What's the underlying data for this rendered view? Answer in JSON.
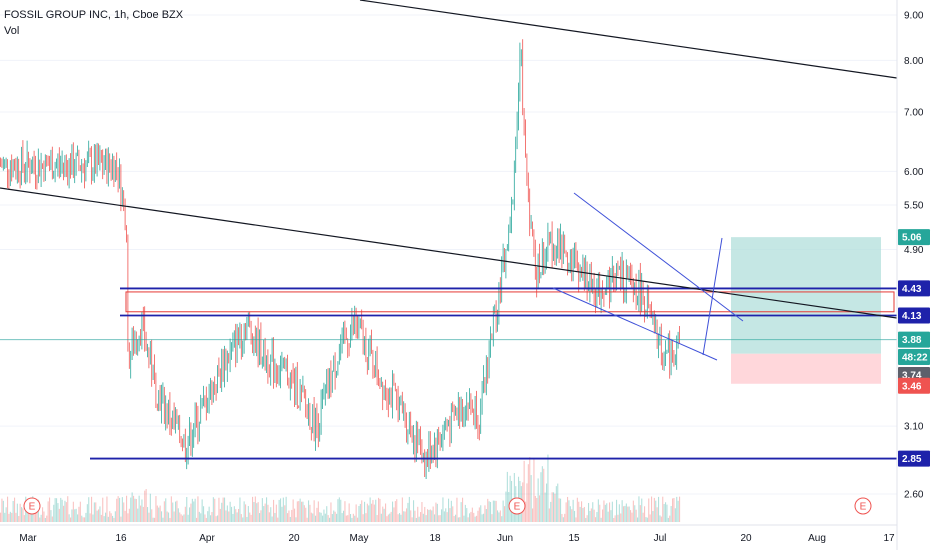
{
  "header": {
    "symbol_line": "FOSSIL GROUP INC, 1h, Cboe BZX",
    "indicator": "Vol"
  },
  "colors": {
    "up": "#26a69a",
    "down": "#ef5350",
    "trendline": "#131722",
    "level_line": "#1e22aa",
    "channel": "#3f51d8",
    "box": "#e53935",
    "target_zone": "#b2dfdb",
    "stop_zone": "#ffcdd2",
    "axis_bg": "#ffffff"
  },
  "chart_data": {
    "type": "candlestick",
    "title": "FOSSIL GROUP INC, 1h, Cboe BZX",
    "y_axis": {
      "scale": "log",
      "tick_labels": [
        "9.00",
        "8.00",
        "7.00",
        "6.00",
        "5.50",
        "4.90",
        "3.88",
        "3.10",
        "2.60"
      ]
    },
    "x_axis": {
      "tick_labels": [
        "Mar",
        "16",
        "Apr",
        "20",
        "May",
        "18",
        "Jun",
        "15",
        "Jul",
        "20",
        "Aug",
        "17"
      ]
    },
    "price_badges": [
      {
        "label": "5.06",
        "color": "#26a69a"
      },
      {
        "label": "4.43",
        "color": "#1e22aa"
      },
      {
        "label": "4.13",
        "color": "#1e22aa"
      },
      {
        "label": "3.88",
        "color": "#26a69a"
      },
      {
        "label": "48:22",
        "color": "#26a69a"
      },
      {
        "label": "3.74",
        "color": "#5d606b"
      },
      {
        "label": "3.46",
        "color": "#ef5350"
      },
      {
        "label": "2.85",
        "color": "#1e22aa"
      }
    ],
    "horizontal_levels": [
      4.43,
      4.13,
      2.85
    ],
    "last_price": 3.88,
    "position": {
      "target": 5.06,
      "entry": 3.74,
      "stop": 3.46
    },
    "earnings_markers": [
      "E",
      "E",
      "E"
    ],
    "series_path": [
      {
        "date": "Feb 25",
        "value": 6.1
      },
      {
        "date": "Feb 27",
        "value": 5.2
      },
      {
        "date": "Mar 2",
        "value": 4.1
      },
      {
        "date": "Mar 5",
        "value": 4.5
      },
      {
        "date": "Mar 9",
        "value": 4.6
      },
      {
        "date": "Mar 13",
        "value": 3.9
      },
      {
        "date": "Mar 16",
        "value": 4.4
      },
      {
        "date": "Mar 18",
        "value": 3.0
      },
      {
        "date": "Mar 20",
        "value": 3.5
      },
      {
        "date": "Mar 24",
        "value": 4.05
      },
      {
        "date": "Mar 27",
        "value": 3.4
      },
      {
        "date": "Apr 1",
        "value": 2.95
      },
      {
        "date": "Apr 7",
        "value": 3.5
      },
      {
        "date": "Apr 13",
        "value": 4.05
      },
      {
        "date": "Apr 17",
        "value": 3.7
      },
      {
        "date": "Apr 22",
        "value": 3.5
      },
      {
        "date": "Apr 27",
        "value": 3.1
      },
      {
        "date": "May 2",
        "value": 3.8
      },
      {
        "date": "May 5",
        "value": 4.05
      },
      {
        "date": "May 10",
        "value": 3.5
      },
      {
        "date": "May 14",
        "value": 3.25
      },
      {
        "date": "May 19",
        "value": 2.85
      },
      {
        "date": "May 23",
        "value": 3.1
      },
      {
        "date": "May 27",
        "value": 3.3
      },
      {
        "date": "Jun 1",
        "value": 3.2
      },
      {
        "date": "Jun 3",
        "value": 3.9
      },
      {
        "date": "Jun 5",
        "value": 4.5
      },
      {
        "date": "Jun 7",
        "value": 5.2
      },
      {
        "date": "Jun 9",
        "value": 8.2
      },
      {
        "date": "Jun 10",
        "value": 6.0
      },
      {
        "date": "Jun 12",
        "value": 4.6
      },
      {
        "date": "Jun 15",
        "value": 5.0
      },
      {
        "date": "Jun 19",
        "value": 4.8
      },
      {
        "date": "Jun 24",
        "value": 4.4
      },
      {
        "date": "Jun 28",
        "value": 4.6
      },
      {
        "date": "Jul 1",
        "value": 4.4
      },
      {
        "date": "Jul 5",
        "value": 3.8
      },
      {
        "date": "Jul 7",
        "value": 3.7
      },
      {
        "date": "Jul 9",
        "value": 3.88
      }
    ]
  }
}
